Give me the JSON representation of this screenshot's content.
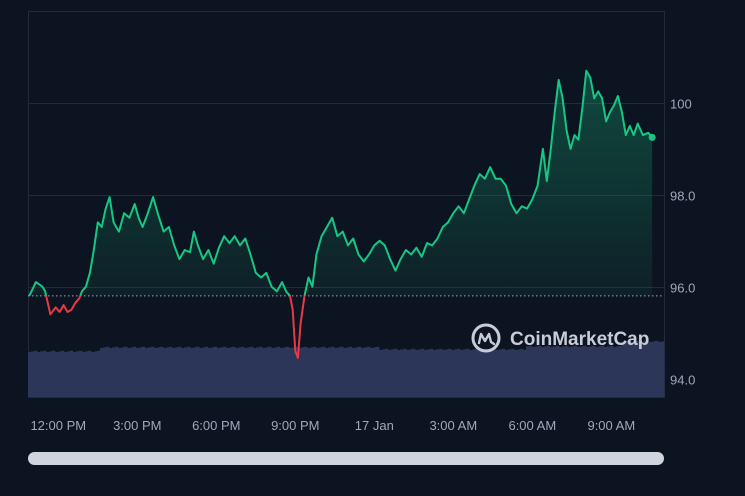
{
  "watermark": {
    "text": "CoinMarketCap",
    "icon": "coinmarketcap-logo-icon"
  },
  "colors": {
    "background": "#0d1421",
    "up_line": "#16c784",
    "down_line": "#ea3943",
    "grid": "#222b3a",
    "baseline": "#a1a7bb",
    "volume": "#2b3658"
  },
  "chart_data": {
    "type": "line",
    "title": "",
    "xlabel": "",
    "ylabel": "",
    "y_ticks": [
      "100",
      "98.0",
      "96.0",
      "94.0"
    ],
    "y_tick_values": [
      100,
      98,
      96,
      94
    ],
    "ylim": [
      93.6,
      102.0
    ],
    "x_ticks": [
      "12:00 PM",
      "3:00 PM",
      "6:00 PM",
      "9:00 PM",
      "17 Jan",
      "3:00 AM",
      "6:00 AM",
      "9:00 AM"
    ],
    "x_tick_hours": [
      0,
      3,
      6,
      9,
      12,
      15,
      18,
      21
    ],
    "xlim_hours": [
      -1.15,
      23.0
    ],
    "baseline": 95.8,
    "grid": "horizontal",
    "series": [
      {
        "values": [
          [
            -1.1,
            95.8
          ],
          [
            -0.85,
            96.1
          ],
          [
            -0.6,
            96.0
          ],
          [
            -0.5,
            95.9
          ],
          [
            -0.3,
            95.4
          ],
          [
            -0.1,
            95.55
          ],
          [
            0.05,
            95.45
          ],
          [
            0.2,
            95.6
          ],
          [
            0.35,
            95.45
          ],
          [
            0.5,
            95.5
          ],
          [
            0.65,
            95.65
          ],
          [
            0.8,
            95.75
          ],
          [
            0.9,
            95.9
          ],
          [
            1.05,
            96.0
          ],
          [
            1.2,
            96.3
          ],
          [
            1.35,
            96.8
          ],
          [
            1.5,
            97.4
          ],
          [
            1.65,
            97.3
          ],
          [
            1.8,
            97.7
          ],
          [
            1.95,
            97.95
          ],
          [
            2.1,
            97.4
          ],
          [
            2.3,
            97.2
          ],
          [
            2.5,
            97.6
          ],
          [
            2.7,
            97.5
          ],
          [
            2.9,
            97.8
          ],
          [
            3.05,
            97.5
          ],
          [
            3.2,
            97.3
          ],
          [
            3.4,
            97.6
          ],
          [
            3.6,
            97.95
          ],
          [
            3.8,
            97.55
          ],
          [
            4.0,
            97.2
          ],
          [
            4.2,
            97.3
          ],
          [
            4.4,
            96.9
          ],
          [
            4.6,
            96.6
          ],
          [
            4.8,
            96.8
          ],
          [
            5.0,
            96.75
          ],
          [
            5.15,
            97.2
          ],
          [
            5.3,
            96.9
          ],
          [
            5.5,
            96.6
          ],
          [
            5.7,
            96.8
          ],
          [
            5.9,
            96.5
          ],
          [
            6.1,
            96.85
          ],
          [
            6.3,
            97.1
          ],
          [
            6.5,
            96.95
          ],
          [
            6.7,
            97.1
          ],
          [
            6.9,
            96.9
          ],
          [
            7.1,
            97.05
          ],
          [
            7.3,
            96.7
          ],
          [
            7.5,
            96.3
          ],
          [
            7.7,
            96.2
          ],
          [
            7.9,
            96.3
          ],
          [
            8.1,
            96.0
          ],
          [
            8.3,
            95.9
          ],
          [
            8.5,
            96.1
          ],
          [
            8.65,
            95.9
          ],
          [
            8.8,
            95.8
          ],
          [
            8.9,
            95.5
          ],
          [
            9.0,
            94.6
          ],
          [
            9.1,
            94.45
          ],
          [
            9.2,
            95.2
          ],
          [
            9.35,
            95.8
          ],
          [
            9.5,
            96.2
          ],
          [
            9.65,
            96.0
          ],
          [
            9.8,
            96.7
          ],
          [
            10.0,
            97.1
          ],
          [
            10.2,
            97.3
          ],
          [
            10.4,
            97.5
          ],
          [
            10.6,
            97.1
          ],
          [
            10.8,
            97.2
          ],
          [
            11.0,
            96.9
          ],
          [
            11.2,
            97.05
          ],
          [
            11.4,
            96.7
          ],
          [
            11.6,
            96.55
          ],
          [
            11.8,
            96.7
          ],
          [
            12.0,
            96.9
          ],
          [
            12.2,
            97.0
          ],
          [
            12.4,
            96.9
          ],
          [
            12.6,
            96.6
          ],
          [
            12.8,
            96.35
          ],
          [
            13.0,
            96.6
          ],
          [
            13.2,
            96.8
          ],
          [
            13.4,
            96.7
          ],
          [
            13.6,
            96.85
          ],
          [
            13.8,
            96.65
          ],
          [
            14.0,
            96.95
          ],
          [
            14.2,
            96.9
          ],
          [
            14.4,
            97.05
          ],
          [
            14.6,
            97.3
          ],
          [
            14.8,
            97.4
          ],
          [
            15.0,
            97.6
          ],
          [
            15.2,
            97.75
          ],
          [
            15.4,
            97.6
          ],
          [
            15.6,
            97.9
          ],
          [
            15.8,
            98.2
          ],
          [
            16.0,
            98.45
          ],
          [
            16.2,
            98.35
          ],
          [
            16.4,
            98.6
          ],
          [
            16.6,
            98.35
          ],
          [
            16.8,
            98.35
          ],
          [
            17.0,
            98.2
          ],
          [
            17.2,
            97.8
          ],
          [
            17.4,
            97.6
          ],
          [
            17.6,
            97.75
          ],
          [
            17.8,
            97.7
          ],
          [
            18.0,
            97.9
          ],
          [
            18.2,
            98.2
          ],
          [
            18.4,
            99.0
          ],
          [
            18.55,
            98.3
          ],
          [
            18.7,
            99.0
          ],
          [
            18.85,
            99.8
          ],
          [
            19.0,
            100.5
          ],
          [
            19.15,
            100.1
          ],
          [
            19.3,
            99.4
          ],
          [
            19.45,
            99.0
          ],
          [
            19.6,
            99.3
          ],
          [
            19.75,
            99.2
          ],
          [
            19.9,
            99.9
          ],
          [
            20.05,
            100.7
          ],
          [
            20.2,
            100.55
          ],
          [
            20.35,
            100.1
          ],
          [
            20.5,
            100.25
          ],
          [
            20.65,
            100.1
          ],
          [
            20.8,
            99.6
          ],
          [
            20.95,
            99.8
          ],
          [
            21.1,
            99.95
          ],
          [
            21.25,
            100.15
          ],
          [
            21.4,
            99.8
          ],
          [
            21.55,
            99.3
          ],
          [
            21.7,
            99.5
          ],
          [
            21.85,
            99.3
          ],
          [
            22.0,
            99.55
          ],
          [
            22.2,
            99.3
          ],
          [
            22.4,
            99.35
          ],
          [
            22.55,
            99.25
          ]
        ]
      }
    ]
  }
}
